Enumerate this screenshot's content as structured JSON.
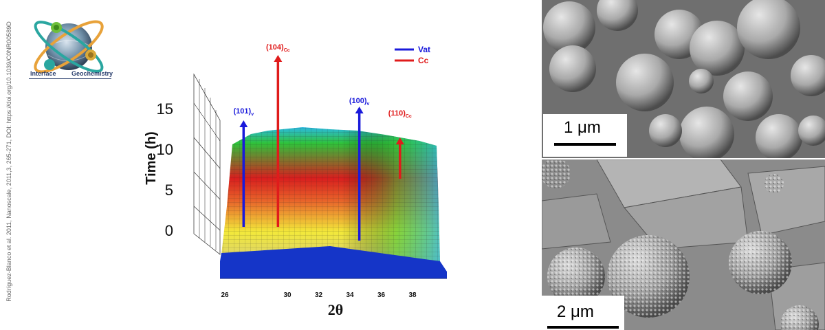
{
  "citation": "Rodríguez-Blanco et al. 2011, Nanoscale, 2011,3, 265-271, DOI: https://doi.org/10.1039/C0NR00589D",
  "logo": {
    "label_left": "Interface",
    "label_right": "Geochemistry",
    "colors": {
      "ring_orange": "#e8a23a",
      "ring_teal": "#2aa6a0",
      "globe": "#6f8fa8"
    }
  },
  "chart_data": {
    "type": "surface3d",
    "xlabel": "2θ",
    "ylabel": "Time (h)",
    "x_ticks": [
      "26",
      "30",
      "32",
      "34",
      "36",
      "38"
    ],
    "y_ticks": [
      "0",
      "5",
      "10",
      "15"
    ],
    "legend": {
      "placement": "top-right",
      "entries": [
        {
          "name": "Vat",
          "color": "#1a1adb"
        },
        {
          "name": "Cc",
          "color": "#e01b1b"
        }
      ]
    },
    "peaks": [
      {
        "label": "(101)",
        "subscript": "v",
        "phase": "Vat",
        "two_theta": 27.2,
        "color": "#1a1adb"
      },
      {
        "label": "(104)",
        "subscript": "Cc",
        "phase": "Cc",
        "two_theta": 29.4,
        "color": "#e01b1b"
      },
      {
        "label": "(100)",
        "subscript": "v",
        "phase": "Vat",
        "two_theta": 34.6,
        "color": "#1a1adb"
      },
      {
        "label": "(110)",
        "subscript": "Cc",
        "phase": "Cc",
        "two_theta": 37.2,
        "color": "#e01b1b"
      }
    ],
    "colormap": [
      "#1535c8",
      "#2bb9e0",
      "#2fc23a",
      "#f3e93a",
      "#e8642a",
      "#d81e1e"
    ]
  },
  "sem_images": [
    {
      "scale_label": "1 μm",
      "base": "#8c8c8c"
    },
    {
      "scale_label": "2 μm",
      "base": "#7d7d7d"
    }
  ]
}
